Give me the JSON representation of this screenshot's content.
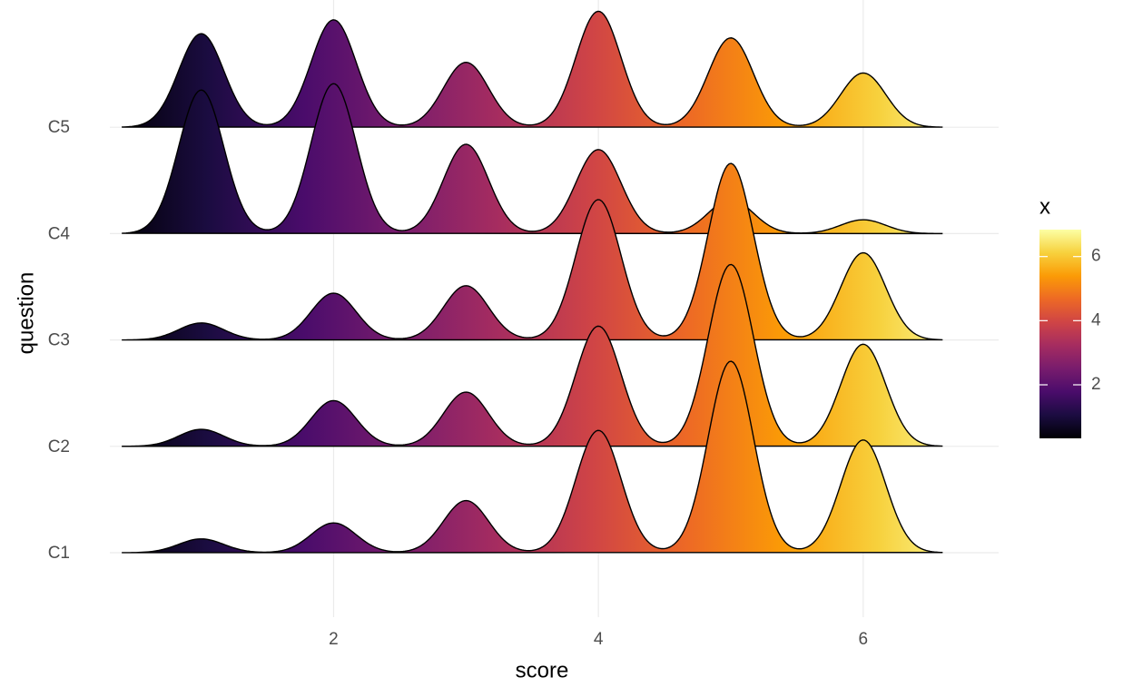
{
  "chart_data": {
    "type": "ridgeline",
    "x_label": "score",
    "y_label": "question",
    "x": [
      1,
      2,
      3,
      4,
      5,
      6
    ],
    "categories": [
      "C1",
      "C2",
      "C3",
      "C4",
      "C5"
    ],
    "series": [
      {
        "name": "C1",
        "values": [
          0.13,
          0.28,
          0.49,
          1.15,
          1.8,
          1.06
        ]
      },
      {
        "name": "C2",
        "values": [
          0.16,
          0.43,
          0.51,
          1.13,
          1.71,
          0.96
        ]
      },
      {
        "name": "C3",
        "values": [
          0.16,
          0.44,
          0.51,
          1.32,
          1.66,
          0.82
        ]
      },
      {
        "name": "C4",
        "values": [
          1.35,
          1.41,
          0.84,
          0.79,
          0.32,
          0.13
        ]
      },
      {
        "name": "C5",
        "values": [
          0.88,
          1.01,
          0.61,
          1.09,
          0.84,
          0.51
        ]
      }
    ],
    "xlim": [
      0.31,
      6.92
    ],
    "xticks": [
      2,
      4,
      6
    ],
    "grid": true,
    "legend_title": "x",
    "colorbar_lim": [
      0.33,
      6.84
    ],
    "colorbar_ticks": [
      2,
      4,
      6
    ],
    "colormap": [
      "#000004",
      "#1b0c41",
      "#4a0c6b",
      "#781c6d",
      "#a52c60",
      "#cf4446",
      "#ed6925",
      "#fb9b06",
      "#f7d13d",
      "#fcffa4"
    ]
  }
}
